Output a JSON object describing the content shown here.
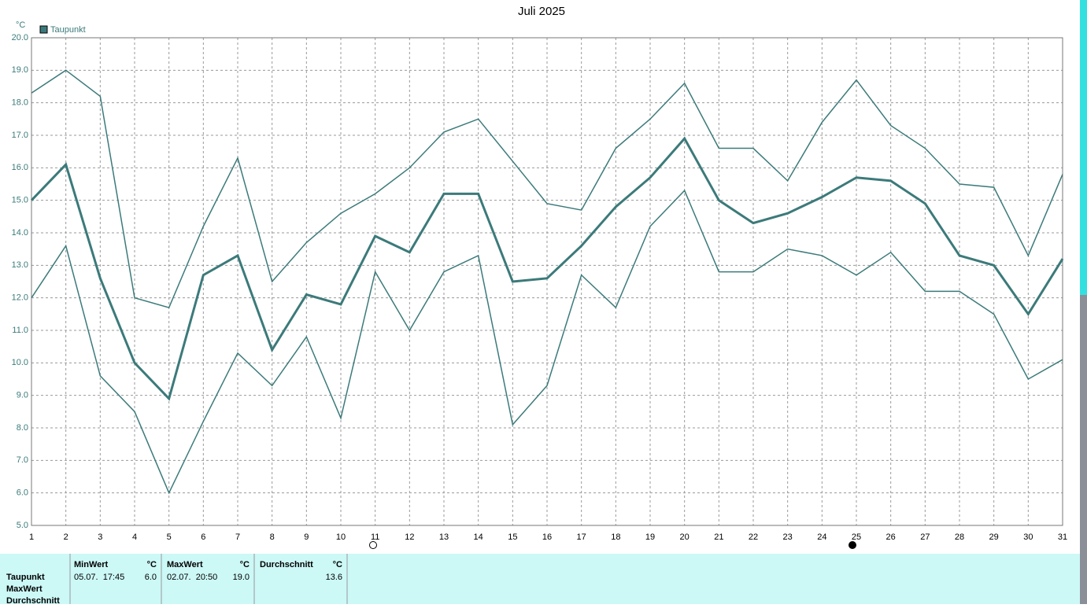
{
  "chart_data": {
    "type": "line",
    "title": "Juli 2025",
    "y_label": "°C",
    "x": [
      1,
      2,
      3,
      4,
      5,
      6,
      7,
      8,
      9,
      10,
      11,
      12,
      13,
      14,
      15,
      16,
      17,
      18,
      19,
      20,
      21,
      22,
      23,
      24,
      25,
      26,
      27,
      28,
      29,
      30,
      31
    ],
    "xlim": [
      1,
      31
    ],
    "xticks": [
      1,
      2,
      3,
      4,
      5,
      6,
      7,
      8,
      9,
      10,
      11,
      12,
      13,
      14,
      15,
      16,
      17,
      18,
      19,
      20,
      21,
      22,
      23,
      24,
      25,
      26,
      27,
      28,
      29,
      30,
      31
    ],
    "ylim": [
      5,
      20
    ],
    "yticks": [
      {
        "value": 5,
        "label": "5.0"
      },
      {
        "value": 6,
        "label": "6.0"
      },
      {
        "value": 7,
        "label": "7.0"
      },
      {
        "value": 8,
        "label": "8.0"
      },
      {
        "value": 9,
        "label": "9.0"
      },
      {
        "value": 10,
        "label": "10.0"
      },
      {
        "value": 11,
        "label": "11.0"
      },
      {
        "value": 12,
        "label": "12.0"
      },
      {
        "value": 13,
        "label": "13.0"
      },
      {
        "value": 14,
        "label": "14.0"
      },
      {
        "value": 15,
        "label": "15.0"
      },
      {
        "value": 16,
        "label": "16.0"
      },
      {
        "value": 17,
        "label": "17.0"
      },
      {
        "value": 18,
        "label": "18.0"
      },
      {
        "value": 19,
        "label": "19.0"
      },
      {
        "value": 20,
        "label": "20.0"
      }
    ],
    "grid": true,
    "series": [
      {
        "name": "Taupunkt",
        "color": "#3c7a7a",
        "values": [
          15.0,
          16.1,
          12.6,
          10.0,
          8.9,
          12.7,
          13.3,
          10.4,
          12.1,
          11.8,
          13.9,
          13.4,
          15.2,
          15.2,
          12.5,
          12.6,
          13.6,
          14.8,
          15.7,
          16.9,
          15.0,
          14.3,
          14.6,
          15.1,
          15.7,
          15.6,
          14.9,
          13.3,
          13.0,
          11.5,
          13.2
        ]
      },
      {
        "color": "#3c7a7a",
        "values": [
          18.3,
          19.0,
          18.2,
          12.0,
          11.7,
          14.2,
          16.3,
          12.5,
          13.7,
          14.6,
          15.2,
          16.0,
          17.1,
          17.5,
          16.2,
          14.9,
          14.7,
          16.6,
          17.5,
          18.6,
          16.6,
          16.6,
          15.6,
          17.4,
          18.7,
          17.3,
          16.6,
          15.5,
          15.4,
          13.3,
          15.8
        ]
      },
      {
        "color": "#3c7a7a",
        "values": [
          12.0,
          13.6,
          9.6,
          8.5,
          6.0,
          8.2,
          10.3,
          9.3,
          10.8,
          8.3,
          12.8,
          11.0,
          12.8,
          13.3,
          8.1,
          9.3,
          12.7,
          11.7,
          14.2,
          15.3,
          12.8,
          12.8,
          13.5,
          13.3,
          12.7,
          13.4,
          12.2,
          12.2,
          11.5,
          9.5,
          10.1
        ]
      }
    ]
  },
  "summary": {
    "row_labels": [
      "Taupunkt",
      "MaxWert",
      "Durchschnitt"
    ],
    "columns": [
      {
        "header": "MinWert",
        "unit": "°C",
        "time": "05.07.  17:45",
        "value": "6.0"
      },
      {
        "header": "MaxWert",
        "unit": "°C",
        "time": "02.07.  20:50",
        "value": "19.0"
      },
      {
        "header": "Durchschnitt",
        "unit": "°C",
        "value": "13.6"
      }
    ]
  }
}
